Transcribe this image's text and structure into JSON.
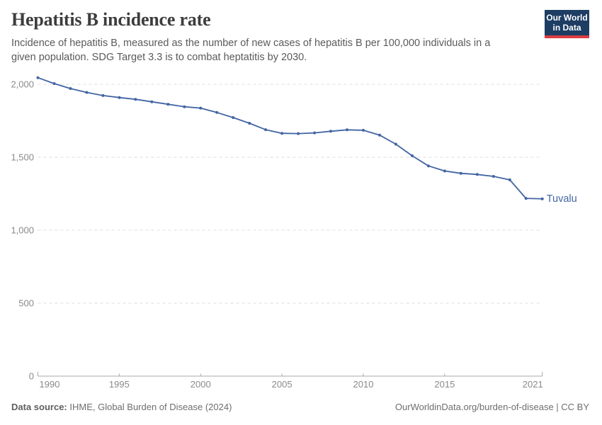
{
  "header": {
    "title": "Hepatitis B incidence rate",
    "subtitle_line1": "Incidence of hepatitis B, measured as the number of new cases of hepatitis B per 100,000 individuals in a",
    "subtitle_line2": "given population. SDG Target 3.3 is to combat heptatitis by 2030."
  },
  "logo": {
    "line1": "Our World",
    "line2": "in Data",
    "bg_color": "#1d3d63",
    "accent_color": "#dc3d43"
  },
  "chart_data": {
    "type": "line",
    "title": "Hepatitis B incidence rate",
    "xlabel": "",
    "ylabel": "",
    "grid": "horizontal-dashed",
    "legend_position": "end-of-line-label",
    "xlim": [
      1990,
      2021
    ],
    "ylim": [
      0,
      2000
    ],
    "x": [
      1990,
      1991,
      1992,
      1993,
      1994,
      1995,
      1996,
      1997,
      1998,
      1999,
      2000,
      2001,
      2002,
      2003,
      2004,
      2005,
      2006,
      2007,
      2008,
      2009,
      2010,
      2011,
      2012,
      2013,
      2014,
      2015,
      2016,
      2017,
      2018,
      2019,
      2020,
      2021
    ],
    "series": [
      {
        "name": "Tuvalu",
        "color": "#4264a3",
        "values": [
          2045,
          2005,
          1971,
          1944,
          1923,
          1909,
          1897,
          1880,
          1863,
          1846,
          1837,
          1807,
          1772,
          1733,
          1689,
          1664,
          1662,
          1667,
          1678,
          1688,
          1685,
          1652,
          1590,
          1510,
          1441,
          1406,
          1390,
          1382,
          1369,
          1345,
          1218,
          1215
        ]
      }
    ],
    "x_ticks": [
      {
        "v": 1990,
        "label": "1990"
      },
      {
        "v": 1995,
        "label": "1995"
      },
      {
        "v": 2000,
        "label": "2000"
      },
      {
        "v": 2005,
        "label": "2005"
      },
      {
        "v": 2010,
        "label": "2010"
      },
      {
        "v": 2015,
        "label": "2015"
      },
      {
        "v": 2021,
        "label": "2021"
      }
    ],
    "y_ticks": [
      {
        "v": 0,
        "label": "0"
      },
      {
        "v": 500,
        "label": "500"
      },
      {
        "v": 1000,
        "label": "1,000"
      },
      {
        "v": 1500,
        "label": "1,500"
      },
      {
        "v": 2000,
        "label": "2,000"
      }
    ]
  },
  "footer": {
    "datasource_label": "Data source:",
    "datasource_value": " IHME, Global Burden of Disease (2024)",
    "credit": "OurWorldinData.org/burden-of-disease | CC BY"
  }
}
